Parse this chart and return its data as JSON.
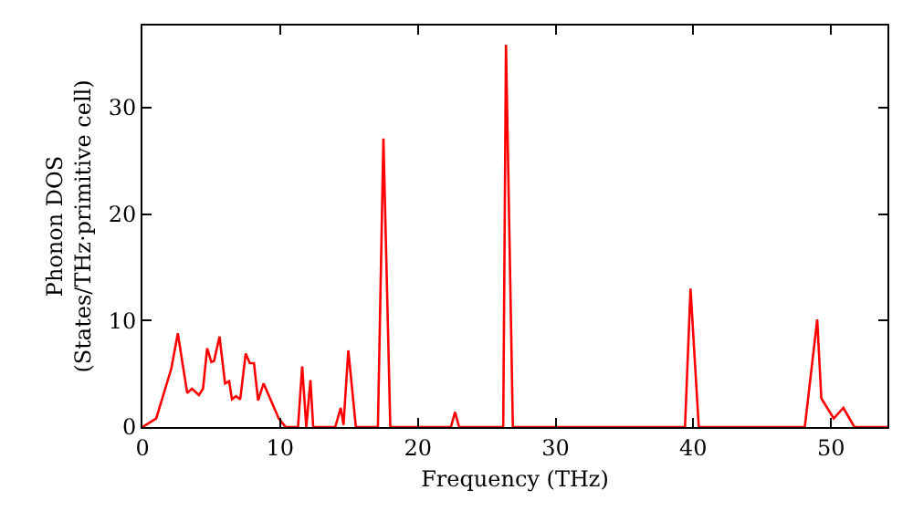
{
  "chart_data": {
    "type": "line",
    "xlabel": "Frequency (THz)",
    "ylabel": "Phonon DOS\n(States/THz·primitive cell)",
    "xlim": [
      0,
      54.1
    ],
    "ylim": [
      0,
      37.7
    ],
    "xticks": [
      0,
      10,
      20,
      30,
      40,
      50
    ],
    "yticks": [
      0,
      10,
      20,
      30
    ],
    "grid": false,
    "marker": "none",
    "line_style": "solid",
    "series": [
      {
        "color": "#ff0000",
        "x": [
          0,
          1.0,
          2.1,
          2.57,
          3.25,
          3.6,
          4.1,
          4.4,
          4.7,
          5.0,
          5.2,
          5.6,
          6.0,
          6.3,
          6.5,
          6.8,
          7.1,
          7.5,
          7.8,
          8.1,
          8.4,
          8.8,
          9.9,
          10.4,
          11.3,
          11.6,
          11.9,
          12.2,
          12.4,
          14.0,
          14.4,
          14.6,
          14.95,
          15.5,
          17.1,
          17.5,
          18.0,
          22.4,
          22.7,
          23.0,
          26.2,
          26.4,
          26.9,
          39.4,
          39.8,
          40.4,
          48.1,
          49.0,
          49.3,
          50.2,
          50.9,
          51.7,
          54.1
        ],
        "values": [
          0,
          0.8,
          5.5,
          8.8,
          3.2,
          3.6,
          3.0,
          3.6,
          7.4,
          6.1,
          6.2,
          8.5,
          4.1,
          4.3,
          2.6,
          2.9,
          2.6,
          6.9,
          6.0,
          6.0,
          2.5,
          4.1,
          0.8,
          0,
          0,
          5.7,
          0,
          4.4,
          0,
          0,
          1.8,
          0.2,
          7.2,
          0,
          0,
          27.1,
          0,
          0,
          1.4,
          0,
          0,
          35.9,
          0,
          0,
          13.0,
          0,
          0,
          10.1,
          2.7,
          0.8,
          1.8,
          0,
          0
        ]
      }
    ]
  }
}
